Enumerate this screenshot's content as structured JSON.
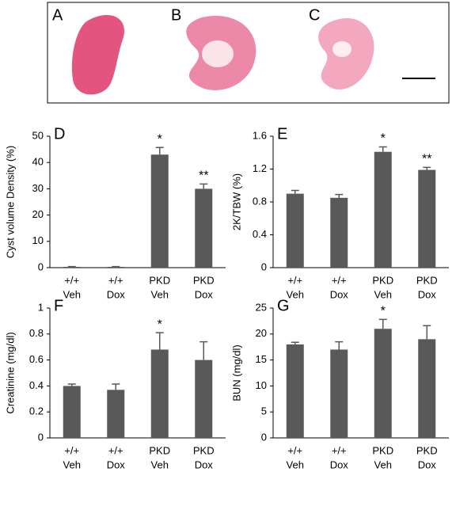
{
  "image_panel": {
    "labels": [
      "A",
      "B",
      "C"
    ]
  },
  "chart_data": [
    {
      "type": "bar",
      "panel_label": "D",
      "y_label": "Cyst volume Density (%)",
      "categories": [
        [
          "+/+",
          "Veh"
        ],
        [
          "+/+",
          "Dox"
        ],
        [
          "PKD",
          "Veh"
        ],
        [
          "PKD",
          "Dox"
        ]
      ],
      "values": [
        0.3,
        0.3,
        43,
        30
      ],
      "errors": [
        0.1,
        0.1,
        2.7,
        1.8
      ],
      "annotations": [
        null,
        null,
        "*",
        "**"
      ],
      "color": "#595959",
      "ylim": [
        0,
        50
      ],
      "yticks": [
        0,
        10,
        20,
        30,
        40,
        50
      ]
    },
    {
      "type": "bar",
      "panel_label": "E",
      "y_label": "2K/TBW (%)",
      "categories": [
        [
          "+/+",
          "Veh"
        ],
        [
          "+/+",
          "Dox"
        ],
        [
          "PKD",
          "Veh"
        ],
        [
          "PKD",
          "Dox"
        ]
      ],
      "values": [
        0.9,
        0.85,
        1.41,
        1.19
      ],
      "errors": [
        0.04,
        0.04,
        0.06,
        0.03
      ],
      "annotations": [
        null,
        null,
        "*",
        "**"
      ],
      "color": "#595959",
      "ylim": [
        0,
        1.6
      ],
      "yticks": [
        0,
        0.4,
        0.8,
        1.2,
        1.6
      ]
    },
    {
      "type": "bar",
      "panel_label": "F",
      "y_label": "Creatinine (mg/dl)",
      "categories": [
        [
          "+/+",
          "Veh"
        ],
        [
          "+/+",
          "Dox"
        ],
        [
          "PKD",
          "Veh"
        ],
        [
          "PKD",
          "Dox"
        ]
      ],
      "values": [
        0.4,
        0.37,
        0.68,
        0.6
      ],
      "errors": [
        0.015,
        0.045,
        0.13,
        0.14
      ],
      "annotations": [
        null,
        null,
        "*",
        null
      ],
      "color": "#595959",
      "ylim": [
        0,
        1
      ],
      "yticks": [
        0,
        0.2,
        0.4,
        0.6,
        0.8,
        1
      ]
    },
    {
      "type": "bar",
      "panel_label": "G",
      "y_label": "BUN (mg/dl)",
      "categories": [
        [
          "+/+",
          "Veh"
        ],
        [
          "+/+",
          "Dox"
        ],
        [
          "PKD",
          "Veh"
        ],
        [
          "PKD",
          "Dox"
        ]
      ],
      "values": [
        18,
        17,
        21,
        19
      ],
      "errors": [
        0.4,
        1.5,
        1.8,
        2.6
      ],
      "annotations": [
        null,
        null,
        "*",
        null
      ],
      "color": "#595959",
      "ylim": [
        0,
        25
      ],
      "yticks": [
        0,
        5,
        10,
        15,
        20,
        25
      ]
    }
  ]
}
